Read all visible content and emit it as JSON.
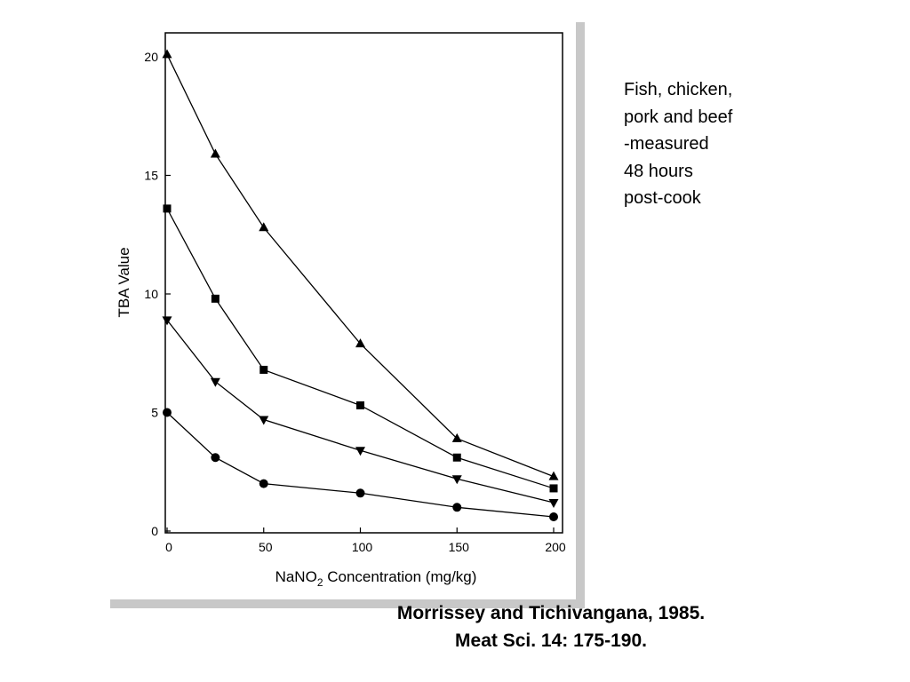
{
  "chart_data": {
    "type": "line",
    "title": "",
    "xlabel": "NaNO2 Concentration  (mg/kg)",
    "xlabel_parts": {
      "before": "NaNO",
      "subscript": "2",
      "after": " Concentration  (mg/kg)"
    },
    "ylabel": "TBA Value",
    "xlim": [
      0,
      200
    ],
    "ylim": [
      0,
      20
    ],
    "x_ticks": [
      0,
      50,
      100,
      150,
      200
    ],
    "y_ticks": [
      0,
      5,
      10,
      15,
      20
    ],
    "x_tick_labels": [
      "0",
      "50",
      "100",
      "150",
      "200"
    ],
    "y_tick_labels": [
      "0",
      "5",
      "10",
      "15",
      "20"
    ],
    "grid": false,
    "legend": "none",
    "x": [
      0,
      25,
      50,
      100,
      150,
      200
    ],
    "series": [
      {
        "marker": "triangle-up",
        "values": [
          20.1,
          15.9,
          12.8,
          7.9,
          3.9,
          2.3
        ]
      },
      {
        "marker": "square",
        "values": [
          13.6,
          9.8,
          6.8,
          5.3,
          3.1,
          1.8
        ]
      },
      {
        "marker": "triangle-down",
        "values": [
          8.9,
          6.3,
          4.7,
          3.4,
          2.2,
          1.2
        ]
      },
      {
        "marker": "circle",
        "values": [
          5.0,
          3.1,
          2.0,
          1.6,
          1.0,
          0.6
        ]
      }
    ]
  },
  "note": {
    "lines": [
      "Fish, chicken,",
      "pork and beef",
      "-measured",
      "48 hours",
      "post-cook"
    ]
  },
  "citation": {
    "line1": "Morrissey and Tichivangana, 1985.",
    "line2": "Meat Sci. 14: 175-190."
  }
}
